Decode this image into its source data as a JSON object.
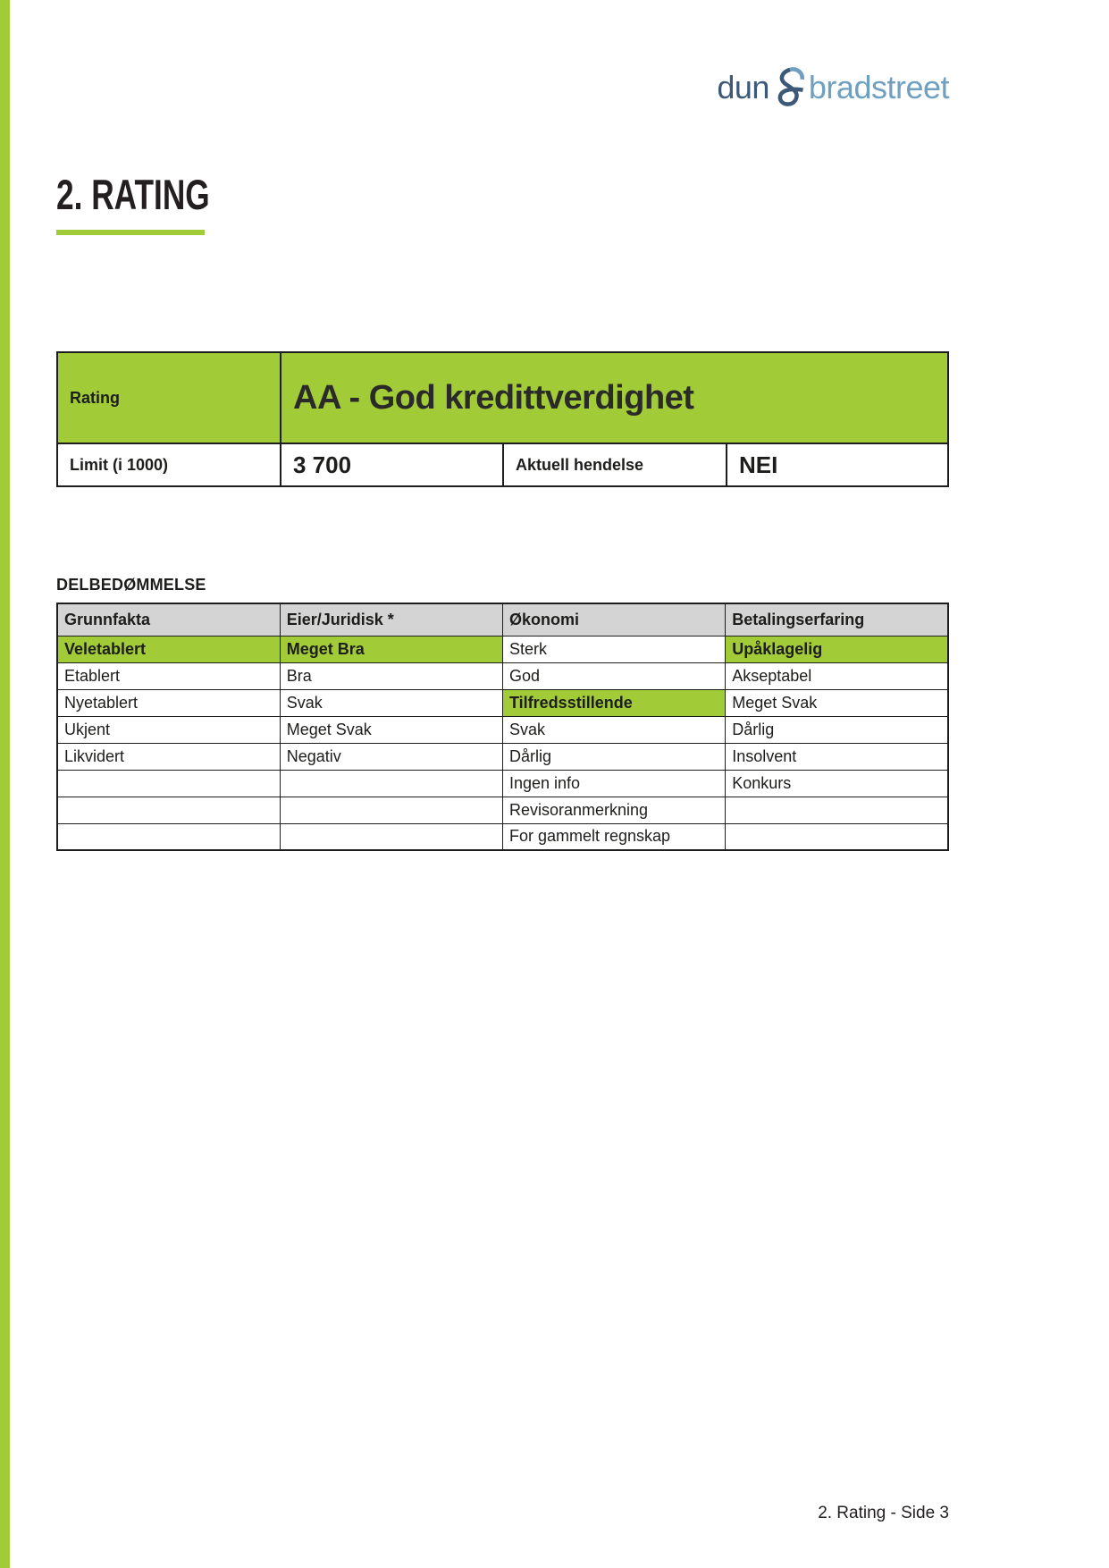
{
  "logo": {
    "word1": "dun",
    "word2": "bradstreet",
    "color_dark": "#3c5a77",
    "color_light": "#6fa0c2"
  },
  "heading": {
    "title": "2. RATING"
  },
  "colors": {
    "accent_green": "#a2cb38",
    "header_gray": "#d4d4d4",
    "border_black": "#1d1d1b"
  },
  "rating_table": {
    "rating_label": "Rating",
    "rating_value": "AA - God kredittverdighet",
    "limit_label": "Limit (i 1000)",
    "limit_value": "3 700",
    "event_label": "Aktuell hendelse",
    "event_value": "NEI"
  },
  "delbedommelse": {
    "title": "DELBEDØMMELSE",
    "columns": [
      "Grunnfakta",
      "Eier/Juridisk *",
      "Økonomi",
      "Betalingserfaring"
    ],
    "rows": [
      [
        {
          "t": "Veletablert",
          "hl": true
        },
        {
          "t": "Meget Bra",
          "hl": true
        },
        {
          "t": "Sterk",
          "hl": false
        },
        {
          "t": "Upåklagelig",
          "hl": true
        }
      ],
      [
        {
          "t": "Etablert",
          "hl": false
        },
        {
          "t": "Bra",
          "hl": false
        },
        {
          "t": "God",
          "hl": false
        },
        {
          "t": "Akseptabel",
          "hl": false
        }
      ],
      [
        {
          "t": "Nyetablert",
          "hl": false
        },
        {
          "t": "Svak",
          "hl": false
        },
        {
          "t": "Tilfredsstillende",
          "hl": true
        },
        {
          "t": "Meget Svak",
          "hl": false
        }
      ],
      [
        {
          "t": "Ukjent",
          "hl": false
        },
        {
          "t": "Meget Svak",
          "hl": false
        },
        {
          "t": "Svak",
          "hl": false
        },
        {
          "t": "Dårlig",
          "hl": false
        }
      ],
      [
        {
          "t": "Likvidert",
          "hl": false
        },
        {
          "t": "Negativ",
          "hl": false
        },
        {
          "t": "Dårlig",
          "hl": false
        },
        {
          "t": "Insolvent",
          "hl": false
        }
      ],
      [
        {
          "t": "",
          "hl": false
        },
        {
          "t": "",
          "hl": false
        },
        {
          "t": "Ingen info",
          "hl": false
        },
        {
          "t": "Konkurs",
          "hl": false
        }
      ],
      [
        {
          "t": "",
          "hl": false
        },
        {
          "t": "",
          "hl": false
        },
        {
          "t": "Revisoranmerkning",
          "hl": false
        },
        {
          "t": "",
          "hl": false
        }
      ],
      [
        {
          "t": "",
          "hl": false
        },
        {
          "t": "",
          "hl": false
        },
        {
          "t": "For gammelt regnskap",
          "hl": false
        },
        {
          "t": "",
          "hl": false
        }
      ]
    ]
  },
  "page": {
    "footer": "2. Rating - Side 3"
  }
}
